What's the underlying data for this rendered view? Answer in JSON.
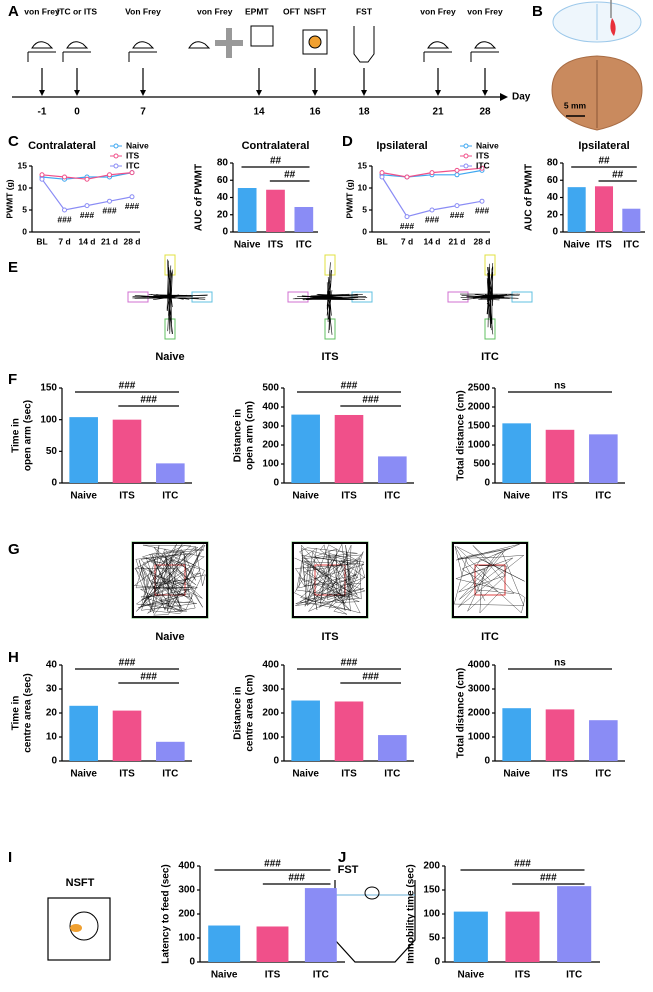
{
  "panel_letters": [
    "A",
    "B",
    "C",
    "D",
    "E",
    "F",
    "G",
    "H",
    "I",
    "J"
  ],
  "timeline": {
    "axis_label": "Day",
    "events": [
      {
        "day": -1,
        "labels": [
          "von Frey"
        ]
      },
      {
        "day": 0,
        "labels": [
          "ITC or ITS"
        ]
      },
      {
        "day": 7,
        "labels": [
          "Von Frey"
        ]
      },
      {
        "day": 14,
        "labels": [
          "von Frey",
          "EPMT",
          "OFT"
        ]
      },
      {
        "day": 16,
        "labels": [
          "NSFT"
        ]
      },
      {
        "day": 18,
        "labels": [
          "FST"
        ]
      },
      {
        "day": 21,
        "labels": [
          "von Frey"
        ]
      },
      {
        "day": 28,
        "labels": [
          "von Frey"
        ]
      }
    ]
  },
  "scale_bar": "5 mm",
  "track_labels_epm": [
    "Naive",
    "ITS",
    "ITC"
  ],
  "track_labels_oft": [
    "Naive",
    "ITS",
    "ITC"
  ],
  "test_titles": [
    "NSFT",
    "FST"
  ],
  "chart_data": [
    {
      "type": "line",
      "title": "Contralateral",
      "ylabel": [
        "PWMT (g)"
      ],
      "categories": [
        "BL",
        "7 d",
        "14 d",
        "21 d",
        "28 d"
      ],
      "series": [
        {
          "name": "Naive",
          "color": "#3fa7f0",
          "values": [
            12.5,
            12,
            12.5,
            12.5,
            13.5
          ]
        },
        {
          "name": "ITS",
          "color": "#f0508a",
          "values": [
            13,
            12.5,
            12,
            13,
            13.5
          ]
        },
        {
          "name": "ITC",
          "color": "#8a8cf5",
          "values": [
            12,
            5,
            6,
            7,
            8
          ]
        }
      ],
      "annotations": [
        {
          "label": "###",
          "series": "ITC",
          "category": "7 d"
        },
        {
          "label": "###",
          "series": "ITC",
          "category": "14 d"
        },
        {
          "label": "###",
          "series": "ITC",
          "category": "21 d"
        },
        {
          "label": "###",
          "series": "ITC",
          "category": "28 d"
        }
      ],
      "ylim": [
        0,
        15
      ],
      "yticks": [
        0,
        5,
        10,
        15
      ]
    },
    {
      "type": "bar",
      "title": "Contralateral",
      "ylabel": [
        "AUC of PWMT"
      ],
      "categories": [
        "Naive",
        "ITS",
        "ITC"
      ],
      "values": [
        51,
        49,
        29
      ],
      "colors": [
        "#3fa7f0",
        "#f0508a",
        "#8a8cf5"
      ],
      "comparisons": [
        {
          "label": "##",
          "groups": [
            "Naive",
            "ITC"
          ]
        },
        {
          "label": "##",
          "groups": [
            "ITS",
            "ITC"
          ]
        }
      ],
      "ylim": [
        0,
        80
      ],
      "yticks": [
        0,
        20,
        40,
        60,
        80
      ]
    },
    {
      "type": "line",
      "title": "Ipsilateral",
      "ylabel": [
        "PWMT (g)"
      ],
      "categories": [
        "BL",
        "7 d",
        "14 d",
        "21 d",
        "28 d"
      ],
      "series": [
        {
          "name": "Naive",
          "color": "#3fa7f0",
          "values": [
            13,
            12.5,
            13,
            13,
            14
          ]
        },
        {
          "name": "ITS",
          "color": "#f0508a",
          "values": [
            13.5,
            12.5,
            13.5,
            14,
            14.5
          ]
        },
        {
          "name": "ITC",
          "color": "#8a8cf5",
          "values": [
            12.5,
            3.5,
            5,
            6,
            7
          ]
        }
      ],
      "annotations": [
        {
          "label": "###",
          "series": "ITC",
          "category": "7 d"
        },
        {
          "label": "###",
          "series": "ITC",
          "category": "14 d"
        },
        {
          "label": "###",
          "series": "ITC",
          "category": "21 d"
        },
        {
          "label": "###",
          "series": "ITC",
          "category": "28 d"
        }
      ],
      "ylim": [
        0,
        15
      ],
      "yticks": [
        0,
        5,
        10,
        15
      ]
    },
    {
      "type": "bar",
      "title": "Ipsilateral",
      "ylabel": [
        "AUC of PWMT"
      ],
      "categories": [
        "Naive",
        "ITS",
        "ITC"
      ],
      "values": [
        52,
        53,
        27
      ],
      "colors": [
        "#3fa7f0",
        "#f0508a",
        "#8a8cf5"
      ],
      "comparisons": [
        {
          "label": "##",
          "groups": [
            "Naive",
            "ITC"
          ]
        },
        {
          "label": "##",
          "groups": [
            "ITS",
            "ITC"
          ]
        }
      ],
      "ylim": [
        0,
        80
      ],
      "yticks": [
        0,
        20,
        40,
        60,
        80
      ]
    },
    {
      "type": "bar",
      "ylabel": [
        "Time in",
        "open arm (sec)"
      ],
      "categories": [
        "Naive",
        "ITS",
        "ITC"
      ],
      "values": [
        104,
        100,
        31
      ],
      "colors": [
        "#3fa7f0",
        "#f0508a",
        "#8a8cf5"
      ],
      "comparisons": [
        {
          "label": "###",
          "groups": [
            "Naive",
            "ITC"
          ]
        },
        {
          "label": "###",
          "groups": [
            "ITS",
            "ITC"
          ]
        }
      ],
      "ylim": [
        0,
        150
      ],
      "yticks": [
        0,
        50,
        100,
        150
      ]
    },
    {
      "type": "bar",
      "ylabel": [
        "Distance in",
        "open arm (cm)"
      ],
      "categories": [
        "Naive",
        "ITS",
        "ITC"
      ],
      "values": [
        360,
        358,
        140
      ],
      "colors": [
        "#3fa7f0",
        "#f0508a",
        "#8a8cf5"
      ],
      "comparisons": [
        {
          "label": "###",
          "groups": [
            "Naive",
            "ITC"
          ]
        },
        {
          "label": "###",
          "groups": [
            "ITS",
            "ITC"
          ]
        }
      ],
      "ylim": [
        0,
        500
      ],
      "yticks": [
        0,
        100,
        200,
        300,
        400,
        500
      ]
    },
    {
      "type": "bar",
      "ylabel": [
        "Total distance (cm)"
      ],
      "categories": [
        "Naive",
        "ITS",
        "ITC"
      ],
      "values": [
        1570,
        1400,
        1280
      ],
      "colors": [
        "#3fa7f0",
        "#f0508a",
        "#8a8cf5"
      ],
      "comparisons": [
        {
          "label": "ns",
          "groups": [
            "Naive",
            "ITC"
          ]
        }
      ],
      "ylim": [
        0,
        2500
      ],
      "yticks": [
        0,
        500,
        1000,
        1500,
        2000,
        2500
      ]
    },
    {
      "type": "bar",
      "ylabel": [
        "Time in",
        "centre area (sec)"
      ],
      "categories": [
        "Naive",
        "ITS",
        "ITC"
      ],
      "values": [
        23,
        21,
        8
      ],
      "colors": [
        "#3fa7f0",
        "#f0508a",
        "#8a8cf5"
      ],
      "comparisons": [
        {
          "label": "###",
          "groups": [
            "Naive",
            "ITC"
          ]
        },
        {
          "label": "###",
          "groups": [
            "ITS",
            "ITC"
          ]
        }
      ],
      "ylim": [
        0,
        40
      ],
      "yticks": [
        0,
        10,
        20,
        30,
        40
      ]
    },
    {
      "type": "bar",
      "ylabel": [
        "Distance in",
        "centre area (cm)"
      ],
      "categories": [
        "Naive",
        "ITS",
        "ITC"
      ],
      "values": [
        252,
        248,
        108
      ],
      "colors": [
        "#3fa7f0",
        "#f0508a",
        "#8a8cf5"
      ],
      "comparisons": [
        {
          "label": "###",
          "groups": [
            "Naive",
            "ITC"
          ]
        },
        {
          "label": "###",
          "groups": [
            "ITS",
            "ITC"
          ]
        }
      ],
      "ylim": [
        0,
        400
      ],
      "yticks": [
        0,
        100,
        200,
        300,
        400
      ]
    },
    {
      "type": "bar",
      "ylabel": [
        "Total distance (cm)"
      ],
      "categories": [
        "Naive",
        "ITS",
        "ITC"
      ],
      "values": [
        2200,
        2150,
        1700
      ],
      "colors": [
        "#3fa7f0",
        "#f0508a",
        "#8a8cf5"
      ],
      "comparisons": [
        {
          "label": "ns",
          "groups": [
            "Naive",
            "ITC"
          ]
        }
      ],
      "ylim": [
        0,
        4000
      ],
      "yticks": [
        0,
        1000,
        2000,
        3000,
        4000
      ]
    },
    {
      "type": "bar",
      "ylabel": [
        "Latency to feed (sec)"
      ],
      "categories": [
        "Naive",
        "ITS",
        "ITC"
      ],
      "values": [
        152,
        148,
        308
      ],
      "colors": [
        "#3fa7f0",
        "#f0508a",
        "#8a8cf5"
      ],
      "comparisons": [
        {
          "label": "###",
          "groups": [
            "Naive",
            "ITC"
          ]
        },
        {
          "label": "###",
          "groups": [
            "ITS",
            "ITC"
          ]
        }
      ],
      "ylim": [
        0,
        400
      ],
      "yticks": [
        0,
        100,
        200,
        300,
        400
      ]
    },
    {
      "type": "bar",
      "ylabel": [
        "Immobility time (sec)"
      ],
      "categories": [
        "Naive",
        "ITS",
        "ITC"
      ],
      "values": [
        105,
        105,
        158
      ],
      "colors": [
        "#3fa7f0",
        "#f0508a",
        "#8a8cf5"
      ],
      "comparisons": [
        {
          "label": "###",
          "groups": [
            "Naive",
            "ITC"
          ]
        },
        {
          "label": "###",
          "groups": [
            "ITS",
            "ITC"
          ]
        }
      ],
      "ylim": [
        0,
        200
      ],
      "yticks": [
        0,
        50,
        100,
        150,
        200
      ]
    }
  ]
}
